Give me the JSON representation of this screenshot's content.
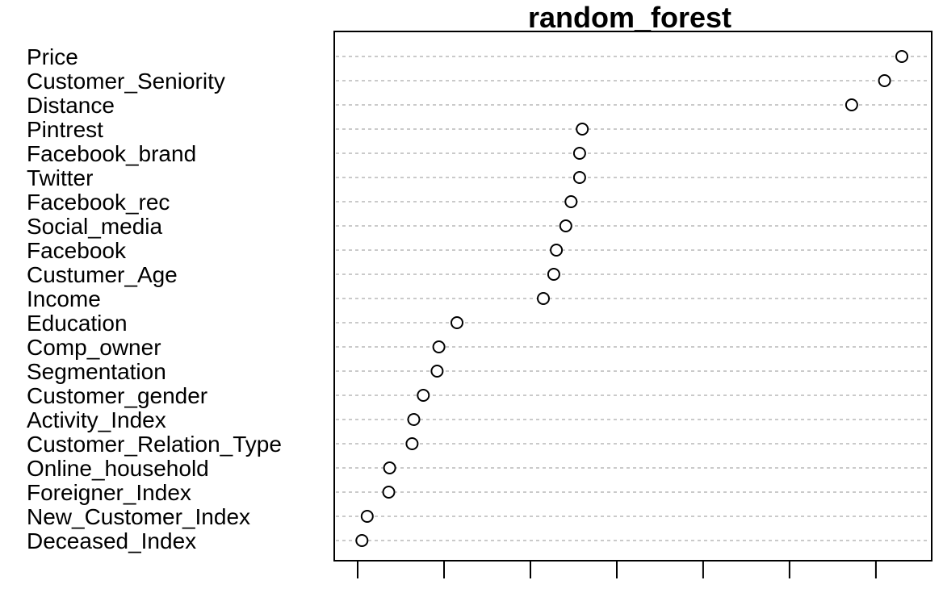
{
  "chart_data": {
    "type": "scatter",
    "style": "dotchart",
    "title": "random_forest",
    "xlabel": "",
    "ylabel": "",
    "xlim": [
      0,
      6.3
    ],
    "x_ticks": [
      0,
      1,
      2,
      3,
      4,
      5,
      6
    ],
    "x_tick_labels_shown": false,
    "grid": "horizontal-dashed",
    "legend": "none",
    "categories": [
      "Price",
      "Customer_Seniority",
      "Distance",
      "Pintrest",
      "Facebook_brand",
      "Twitter",
      "Facebook_rec",
      "Social_media",
      "Facebook",
      "Custumer_Age",
      "Income",
      "Education",
      "Comp_owner",
      "Segmentation",
      "Customer_gender",
      "Activity_Index",
      "Customer_Relation_Type",
      "Online_household",
      "Foreigner_Index",
      "New_Customer_Index",
      "Deceased_Index"
    ],
    "values": [
      6.3,
      6.1,
      5.72,
      2.6,
      2.57,
      2.57,
      2.47,
      2.41,
      2.3,
      2.27,
      2.15,
      1.15,
      0.94,
      0.92,
      0.76,
      0.65,
      0.63,
      0.37,
      0.36,
      0.11,
      0.05
    ]
  }
}
